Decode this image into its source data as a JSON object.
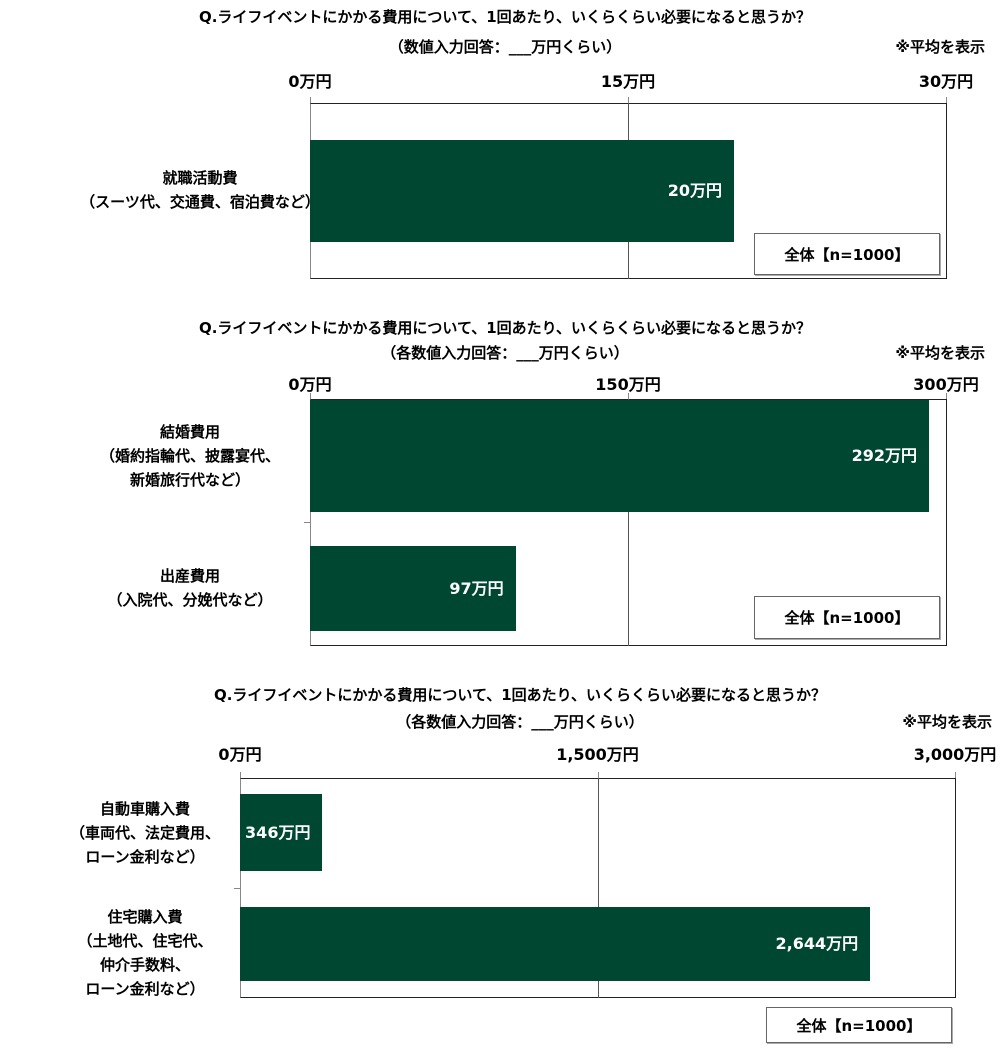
{
  "chart_data": [
    {
      "type": "bar",
      "orientation": "horizontal",
      "title": "Q.ライフイベントにかかる費用について、1回あたり、いくらくらい必要になると思うか？",
      "subtitle": "（数値入力回答：___万円くらい）",
      "note": "※平均を表示",
      "xlim": [
        0,
        30
      ],
      "tick_values": [
        0,
        15,
        30
      ],
      "tick_labels": [
        "0万円",
        "15万円",
        "30万円"
      ],
      "grid": true,
      "categories": [
        [
          "就職活動費",
          "（スーツ代、交通費、宿泊費など）"
        ]
      ],
      "values": [
        20
      ],
      "data_labels": [
        "20万円"
      ],
      "sample_label": "全体【n=1000】",
      "bar_color": "#004731"
    },
    {
      "type": "bar",
      "orientation": "horizontal",
      "title": "Q.ライフイベントにかかる費用について、1回あたり、いくらくらい必要になると思うか？",
      "subtitle": "（各数値入力回答：___万円くらい）",
      "note": "※平均を表示",
      "xlim": [
        0,
        300
      ],
      "tick_values": [
        0,
        150,
        300
      ],
      "tick_labels": [
        "0万円",
        "150万円",
        "300万円"
      ],
      "grid": true,
      "categories": [
        [
          "結婚費用",
          "（婚約指輪代、披露宴代、",
          "新婚旅行代など）"
        ],
        [
          "出産費用",
          "（入院代、分娩代など）"
        ]
      ],
      "values": [
        292,
        97
      ],
      "data_labels": [
        "292万円",
        "97万円"
      ],
      "sample_label": "全体【n=1000】",
      "bar_color": "#004731"
    },
    {
      "type": "bar",
      "orientation": "horizontal",
      "title": "Q.ライフイベントにかかる費用について、1回あたり、いくらくらい必要になると思うか？",
      "subtitle": "（各数値入力回答：___万円くらい）",
      "note": "※平均を表示",
      "xlim": [
        0,
        3000
      ],
      "tick_values": [
        0,
        1500,
        3000
      ],
      "tick_labels": [
        "0万円",
        "1,500万円",
        "3,000万円"
      ],
      "grid": true,
      "categories": [
        [
          "自動車購入費",
          "（車両代、法定費用、",
          "ローン金利など）"
        ],
        [
          "住宅購入費",
          "（土地代、住宅代、",
          "仲介手数料、",
          "ローン金利など）"
        ]
      ],
      "values": [
        346,
        2644
      ],
      "data_labels": [
        "346万円",
        "2,644万円"
      ],
      "sample_label": "全体【n=1000】",
      "bar_color": "#004731"
    }
  ]
}
